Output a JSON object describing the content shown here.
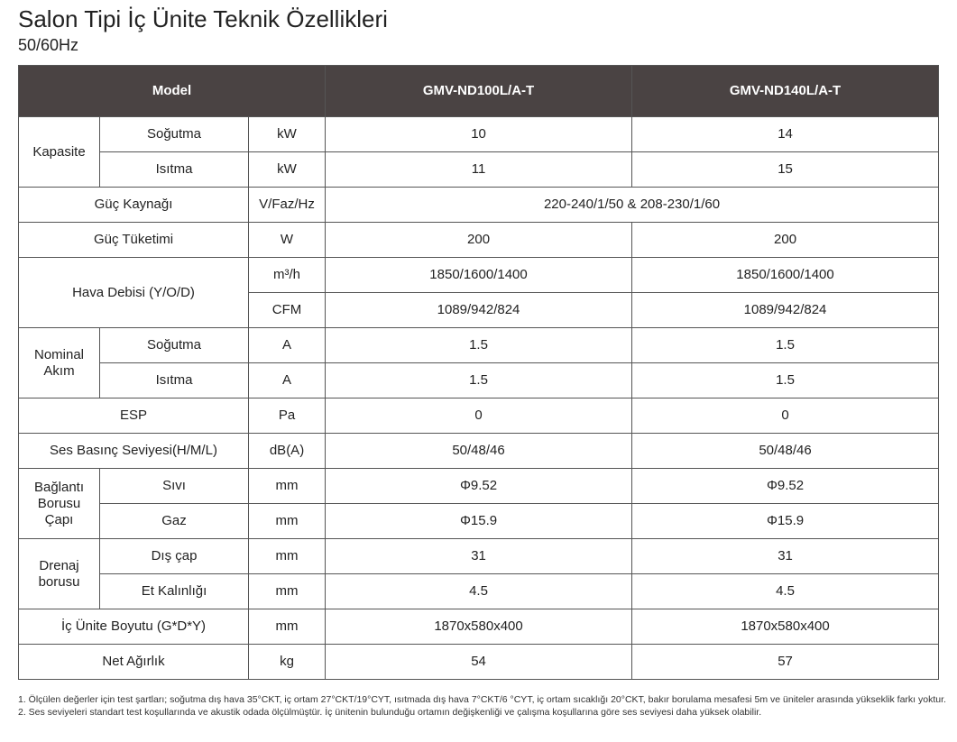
{
  "title": "Salon Tipi İç Ünite Teknik Özellikleri",
  "subtitle": "50/60Hz",
  "table": {
    "header": {
      "model": "Model",
      "col1": "GMV-ND100L/A-T",
      "col2": "GMV-ND140L/A-T"
    },
    "kapasite": {
      "group": "Kapasite",
      "sogutma": {
        "label": "Soğutma",
        "unit": "kW",
        "v1": "10",
        "v2": "14"
      },
      "isitma": {
        "label": "Isıtma",
        "unit": "kW",
        "v1": "11",
        "v2": "15"
      }
    },
    "guc_kaynagi": {
      "label": "Güç Kaynağı",
      "unit": "V/Faz/Hz",
      "value": "220-240/1/50 & 208-230/1/60"
    },
    "guc_tuketimi": {
      "label": "Güç Tüketimi",
      "unit": "W",
      "v1": "200",
      "v2": "200"
    },
    "hava_debisi": {
      "label": "Hava Debisi (Y/O/D)",
      "m3h": {
        "unit": "m³/h",
        "v1": "1850/1600/1400",
        "v2": "1850/1600/1400"
      },
      "cfm": {
        "unit": "CFM",
        "v1": "1089/942/824",
        "v2": "1089/942/824"
      }
    },
    "nominal_akim": {
      "group_line1": "Nominal",
      "group_line2": "Akım",
      "sogutma": {
        "label": "Soğutma",
        "unit": "A",
        "v1": "1.5",
        "v2": "1.5"
      },
      "isitma": {
        "label": "Isıtma",
        "unit": "A",
        "v1": "1.5",
        "v2": "1.5"
      }
    },
    "esp": {
      "label": "ESP",
      "unit": "Pa",
      "v1": "0",
      "v2": "0"
    },
    "ses": {
      "label": "Ses Basınç Seviyesi(H/M/L)",
      "unit": "dB(A)",
      "v1": "50/48/46",
      "v2": "50/48/46"
    },
    "baglanti": {
      "group_line1": "Bağlantı",
      "group_line2": "Borusu",
      "group_line3": "Çapı",
      "sivi": {
        "label": "Sıvı",
        "unit": "mm",
        "v1": "Φ9.52",
        "v2": "Φ9.52"
      },
      "gaz": {
        "label": "Gaz",
        "unit": "mm",
        "v1": "Φ15.9",
        "v2": "Φ15.9"
      }
    },
    "drenaj": {
      "group_line1": "Drenaj",
      "group_line2": "borusu",
      "dis_cap": {
        "label": "Dış çap",
        "unit": "mm",
        "v1": "31",
        "v2": "31"
      },
      "et_kalinligi": {
        "label": "Et Kalınlığı",
        "unit": "mm",
        "v1": "4.5",
        "v2": "4.5"
      }
    },
    "boyut": {
      "label": "İç Ünite Boyutu (G*D*Y)",
      "unit": "mm",
      "v1": "1870x580x400",
      "v2": "1870x580x400"
    },
    "agirlik": {
      "label": "Net Ağırlık",
      "unit": "kg",
      "v1": "54",
      "v2": "57"
    }
  },
  "notes": {
    "note1": "1. Ölçülen değerler için test şartları; soğutma dış hava 35°CKT, iç ortam 27°CKT/19°CYT, ısıtmada dış hava 7°CKT/6 °CYT, iç ortam sıcaklığı 20°CKT, bakır borulama mesafesi 5m ve üniteler arasında yükseklik farkı yoktur.",
    "note2": "2. Ses seviyeleri standart test koşullarında ve akustik odada ölçülmüştür. İç ünitenin bulunduğu ortamın değişkenliği ve çalışma koşullarına göre ses seviyesi daha yüksek olabilir."
  }
}
